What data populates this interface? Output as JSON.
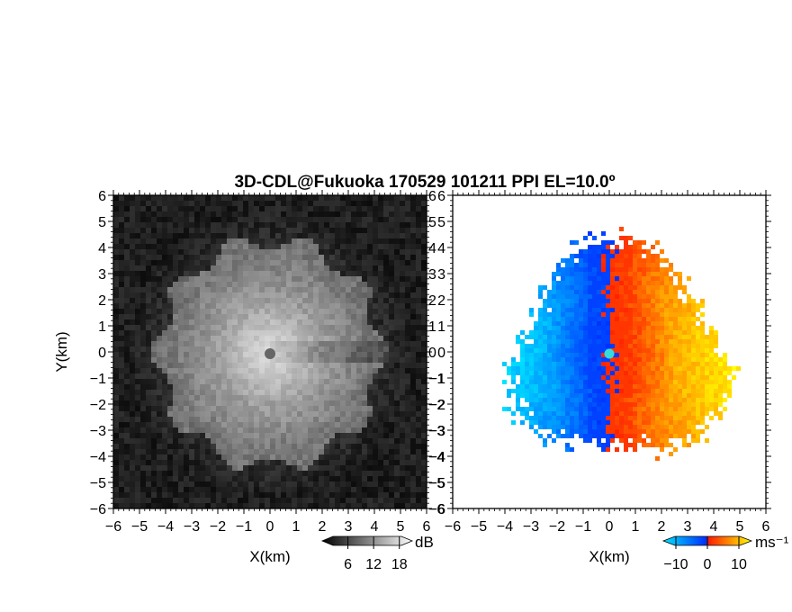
{
  "title": "3D-CDL@Fukuoka 170529 101211 PPI EL=10.0º",
  "chart_data": [
    {
      "type": "heatmap",
      "field": "SNR",
      "xlabel": "X(km)",
      "ylabel": "Y(km)",
      "xlim": [
        -6,
        6
      ],
      "ylim": [
        -6,
        6
      ],
      "x_ticks": [
        "−6",
        "−5",
        "−4",
        "−3",
        "−2",
        "−1",
        "0",
        "1",
        "2",
        "3",
        "4",
        "5",
        "6"
      ],
      "y_ticks": [
        "6",
        "5",
        "4",
        "3",
        "2",
        "1",
        "0",
        "−1",
        "−2",
        "−3",
        "−4",
        "−5",
        "−6"
      ],
      "colorbar": {
        "unit": "dB",
        "tick_labels": [
          "6",
          "12",
          "18"
        ],
        "range": [
          0,
          21
        ],
        "colormap": "grayscale",
        "colors": [
          "#000000",
          "#ffffff"
        ]
      },
      "echo_radius_km": 4.6,
      "radar_site": {
        "x": 0,
        "y": 0,
        "color": "#666666"
      }
    },
    {
      "type": "heatmap",
      "field": "Doppler velocity",
      "xlabel": "X(km)",
      "ylabel": "",
      "xlim": [
        -6,
        6
      ],
      "ylim": [
        -6,
        6
      ],
      "x_ticks": [
        "−6",
        "−5",
        "−4",
        "−3",
        "−2",
        "−1",
        "0",
        "1",
        "2",
        "3",
        "4",
        "5",
        "6"
      ],
      "y_ticks": [
        "6",
        "5",
        "4",
        "3",
        "2",
        "1",
        "0",
        "−1",
        "−2",
        "−3",
        "−4",
        "−5",
        "−6"
      ],
      "colorbar": {
        "unit": "ms⁻¹",
        "tick_labels": [
          "−10",
          "0",
          "10"
        ],
        "range": [
          -14,
          14
        ],
        "colormap": "diverging cyan-blue-red-yellow",
        "colors": [
          "#00e5ff",
          "#0030ff",
          "#ff2000",
          "#ffff00"
        ]
      },
      "echo_radius_km": 5.3,
      "radar_site": {
        "x": 0,
        "y": 0,
        "color": "#33dddd"
      }
    }
  ]
}
